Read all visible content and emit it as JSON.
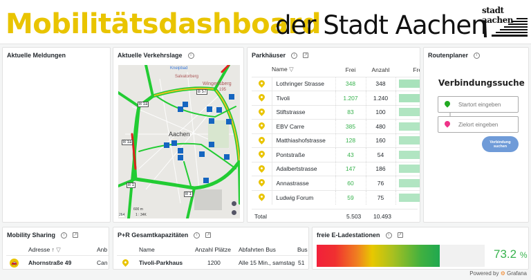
{
  "header": {
    "title_highlight": "Mobilitätsdashboard",
    "title_rest": "der Stadt Aachen",
    "logo_text": "stadt aachen"
  },
  "panels": {
    "meldungen": {
      "title": "Aktuelle Meldungen"
    },
    "verkehrslage": {
      "title": "Aktuelle Verkehrslage",
      "map_labels": {
        "kneipbad": "Kneipbad",
        "salvatorberg": "Salvatorberg",
        "wingertsberg": "Wingertsberg",
        "elevation": "195",
        "b57": "B 57",
        "b1a_top": "B 1a",
        "b1a_left": "B 1a",
        "b1_left": "B 1",
        "b1_bottom": "B 1",
        "city": "Aachen",
        "scale": "600 m",
        "ratio": "1 : 34K",
        "road_num": "264"
      }
    },
    "parkhaeuser": {
      "title": "Parkhäuser",
      "columns": [
        "Name",
        "Frei",
        "Anzahl",
        "Frei"
      ],
      "rows": [
        {
          "name": "Lothringer Strasse",
          "frei": "348",
          "anzahl": "348",
          "fraction": 1.0
        },
        {
          "name": "Tivoli",
          "frei": "1.207",
          "anzahl": "1.240",
          "fraction": 0.97
        },
        {
          "name": "Stiftstrasse",
          "frei": "83",
          "anzahl": "100",
          "fraction": 0.83
        },
        {
          "name": "EBV Carre",
          "frei": "385",
          "anzahl": "480",
          "fraction": 0.8
        },
        {
          "name": "Matthiashofstrasse",
          "frei": "128",
          "anzahl": "160",
          "fraction": 0.8
        },
        {
          "name": "Pontstraße",
          "frei": "43",
          "anzahl": "54",
          "fraction": 0.8
        },
        {
          "name": "Adalbertstrasse",
          "frei": "147",
          "anzahl": "186",
          "fraction": 0.79
        },
        {
          "name": "Annastrasse",
          "frei": "60",
          "anzahl": "76",
          "fraction": 0.79
        },
        {
          "name": "Ludwig Forum",
          "frei": "59",
          "anzahl": "75",
          "fraction": 0.79
        }
      ],
      "total_label": "Total",
      "total_frei": "5.503",
      "total_anzahl": "10.493",
      "bar_color": "#a8e2bb",
      "free_color": "#37b24d"
    },
    "routenplaner": {
      "title": "Routenplaner",
      "heading": "Verbindungssuche",
      "start_placeholder": "Startort eingeben",
      "ziel_placeholder": "Zielort eingeben",
      "button": "Verbindung suchen"
    },
    "sharing": {
      "title": "Mobility Sharing",
      "columns": [
        "Adresse",
        "Anb"
      ],
      "rows": [
        {
          "adresse": "Ahornstraße 49",
          "anbieter": "Can"
        }
      ]
    },
    "pr": {
      "title": "P+R Gesamtkapazitäten",
      "columns": [
        "Name",
        "Anzahl Plätze",
        "Abfahrten Bus",
        "Bus"
      ],
      "rows": [
        {
          "name": "Tivoli-Parkhaus",
          "plaetze": "1200",
          "abfahrten": "Alle 15 Min., samstag",
          "bus": "51"
        }
      ]
    },
    "eladen": {
      "title": "freie E-Ladestationen",
      "value": "73.2",
      "unit": "%",
      "percent": 73.2,
      "value_color": "#37b24d"
    }
  },
  "footer": {
    "powered": "Powered by",
    "brand": "Grafana"
  }
}
